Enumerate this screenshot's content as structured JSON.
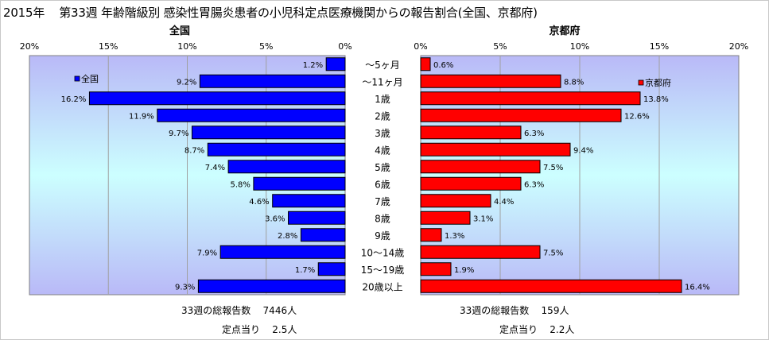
{
  "title": {
    "year": "2015年",
    "main": "第33週 年齢階級別 感染性胃腸炎患者の小児科定点医療機関からの報告割合(全国、京都府)"
  },
  "colors": {
    "national": "#0000ff",
    "kyoto": "#ff0000",
    "bar_border": "#000000"
  },
  "chart_data": [
    {
      "type": "bar",
      "orientation": "horizontal",
      "direction": "right-to-left",
      "panel_title": "全国",
      "legend": "全国",
      "legend_position": "top-left",
      "xlim": [
        0,
        20
      ],
      "ticks": [
        "20%",
        "15%",
        "10%",
        "5%",
        "0%"
      ],
      "tick_values": [
        20,
        15,
        10,
        5,
        0
      ],
      "categories": [
        "～5ヶ月",
        "～11ヶ月",
        "1歳",
        "2歳",
        "3歳",
        "4歳",
        "5歳",
        "6歳",
        "7歳",
        "8歳",
        "9歳",
        "10～14歳",
        "15～19歳",
        "20歳以上"
      ],
      "values": [
        1.2,
        9.2,
        16.2,
        11.9,
        9.7,
        8.7,
        7.4,
        5.8,
        4.6,
        3.6,
        2.8,
        7.9,
        1.7,
        9.3
      ],
      "labels": [
        "1.2%",
        "9.2%",
        "16.2%",
        "11.9%",
        "9.7%",
        "8.7%",
        "7.4%",
        "5.8%",
        "4.6%",
        "3.6%",
        "2.8%",
        "7.9%",
        "1.7%",
        "9.3%"
      ],
      "grid": true,
      "footer": {
        "total_label": "33週の総報告数",
        "total_value": "7446人",
        "per_label": "定点当り",
        "per_value": "2.5人"
      }
    },
    {
      "type": "bar",
      "orientation": "horizontal",
      "direction": "left-to-right",
      "panel_title": "京都府",
      "legend": "京都府",
      "legend_position": "top-right",
      "xlim": [
        0,
        20
      ],
      "ticks": [
        "0%",
        "5%",
        "10%",
        "15%",
        "20%"
      ],
      "tick_values": [
        0,
        5,
        10,
        15,
        20
      ],
      "values": [
        0.6,
        8.8,
        13.8,
        12.6,
        6.3,
        9.4,
        7.5,
        6.3,
        4.4,
        3.1,
        1.3,
        7.5,
        1.9,
        16.4
      ],
      "labels": [
        "0.6%",
        "8.8%",
        "13.8%",
        "12.6%",
        "6.3%",
        "9.4%",
        "7.5%",
        "6.3%",
        "4.4%",
        "3.1%",
        "1.3%",
        "7.5%",
        "1.9%",
        "16.4%"
      ],
      "grid": true,
      "footer": {
        "total_label": "33週の総報告数",
        "total_value": "159人",
        "per_label": "定点当り",
        "per_value": "2.2人"
      }
    }
  ]
}
